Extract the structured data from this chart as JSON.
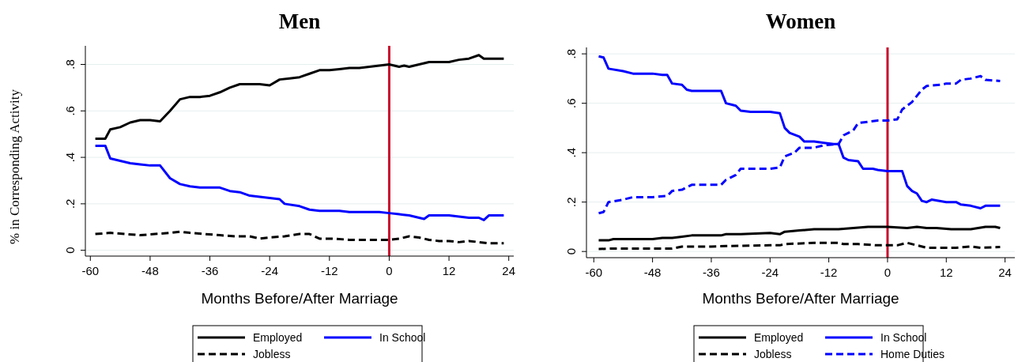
{
  "chart_data": [
    {
      "type": "line",
      "title": "Men",
      "xlabel": "Months Before/After Marriage",
      "ylabel": "% in Corresponding Activity",
      "xlim": [
        -61,
        25
      ],
      "ylim": [
        -0.025,
        0.88
      ],
      "xticks": [
        -60,
        -48,
        -36,
        -24,
        -12,
        0,
        12,
        24
      ],
      "yticks": [
        {
          "value": 0,
          "label": "0"
        },
        {
          "value": 0.2,
          "label": ".2"
        },
        {
          "value": 0.4,
          "label": ".4"
        },
        {
          "value": 0.6,
          "label": ".6"
        },
        {
          "value": 0.8,
          "label": ".8"
        }
      ],
      "grid": "y",
      "legend": "bottom",
      "ref_lines": [
        {
          "axis": "x",
          "value": 0,
          "color": "#c8102e"
        }
      ],
      "series": [
        {
          "name": "Employed",
          "color": "#000000",
          "line_style": "solid",
          "x": [
            -59,
            -57,
            -56,
            -54,
            -52,
            -50,
            -48,
            -46,
            -44,
            -42,
            -40,
            -38,
            -36,
            -34,
            -32,
            -30,
            -28,
            -26,
            -24,
            -22,
            -20,
            -18,
            -16,
            -14,
            -12,
            -10,
            -8,
            -6,
            -4,
            -2,
            0,
            2,
            3,
            4,
            6,
            8,
            10,
            12,
            14,
            16,
            18,
            19,
            23
          ],
          "values": [
            0.48,
            0.48,
            0.52,
            0.53,
            0.55,
            0.56,
            0.56,
            0.555,
            0.6,
            0.65,
            0.66,
            0.66,
            0.665,
            0.68,
            0.7,
            0.715,
            0.715,
            0.715,
            0.71,
            0.735,
            0.74,
            0.745,
            0.76,
            0.775,
            0.775,
            0.78,
            0.785,
            0.785,
            0.79,
            0.795,
            0.8,
            0.79,
            0.795,
            0.79,
            0.8,
            0.81,
            0.81,
            0.81,
            0.82,
            0.825,
            0.84,
            0.825,
            0.825
          ]
        },
        {
          "name": "In School",
          "color": "#0000ff",
          "line_style": "solid",
          "x": [
            -59,
            -57,
            -56,
            -54,
            -52,
            -50,
            -48,
            -46,
            -44,
            -42,
            -40,
            -38,
            -34,
            -32,
            -30,
            -28,
            -26,
            -24,
            -22,
            -21,
            -18,
            -16,
            -14,
            -10,
            -8,
            -4,
            -2,
            0,
            2,
            4,
            6,
            7,
            8,
            12,
            14,
            16,
            18,
            19,
            20,
            23
          ],
          "values": [
            0.45,
            0.45,
            0.395,
            0.385,
            0.375,
            0.37,
            0.365,
            0.365,
            0.31,
            0.285,
            0.275,
            0.27,
            0.27,
            0.255,
            0.25,
            0.235,
            0.23,
            0.225,
            0.22,
            0.2,
            0.19,
            0.175,
            0.17,
            0.17,
            0.165,
            0.165,
            0.165,
            0.16,
            0.155,
            0.15,
            0.14,
            0.135,
            0.15,
            0.15,
            0.145,
            0.14,
            0.14,
            0.13,
            0.15,
            0.15
          ]
        },
        {
          "name": "Jobless",
          "color": "#000000",
          "line_style": "dashed",
          "x": [
            -59,
            -56,
            -53,
            -50,
            -47,
            -44,
            -42,
            -40,
            -37,
            -34,
            -31,
            -28,
            -26,
            -24,
            -21,
            -18,
            -16,
            -14,
            -11,
            -8,
            -5,
            -2,
            0,
            2,
            4,
            6,
            8,
            10,
            12,
            14,
            16,
            18,
            20,
            23
          ],
          "values": [
            0.07,
            0.075,
            0.07,
            0.065,
            0.07,
            0.075,
            0.08,
            0.075,
            0.07,
            0.065,
            0.06,
            0.06,
            0.05,
            0.055,
            0.06,
            0.07,
            0.07,
            0.05,
            0.05,
            0.045,
            0.045,
            0.045,
            0.045,
            0.05,
            0.06,
            0.055,
            0.045,
            0.04,
            0.04,
            0.035,
            0.04,
            0.035,
            0.03,
            0.03
          ]
        }
      ]
    },
    {
      "type": "line",
      "title": "Women",
      "xlabel": "Months Before/After Marriage",
      "xlim": [
        -61.5,
        26
      ],
      "ylim": [
        -0.025,
        0.826
      ],
      "xticks": [
        -60,
        -48,
        -36,
        -24,
        -12,
        0,
        12,
        24
      ],
      "yticks": [
        {
          "value": 0,
          "label": "0"
        },
        {
          "value": 0.2,
          "label": ".2"
        },
        {
          "value": 0.4,
          "label": ".4"
        },
        {
          "value": 0.6,
          "label": ".6"
        },
        {
          "value": 0.8,
          "label": ".8"
        }
      ],
      "grid": "y",
      "legend": "bottom",
      "ref_lines": [
        {
          "axis": "x",
          "value": 0,
          "color": "#c8102e"
        }
      ],
      "series": [
        {
          "name": "Employed",
          "color": "#000000",
          "line_style": "solid",
          "x": [
            -59,
            -57,
            -56,
            -52,
            -48,
            -46,
            -44,
            -42,
            -40,
            -34,
            -33,
            -30,
            -24,
            -22,
            -21,
            -18,
            -15,
            -10,
            -7,
            -4,
            0,
            4,
            6,
            8,
            10,
            13,
            17,
            20,
            22,
            23
          ],
          "values": [
            0.045,
            0.045,
            0.05,
            0.05,
            0.05,
            0.055,
            0.055,
            0.06,
            0.065,
            0.065,
            0.07,
            0.07,
            0.075,
            0.07,
            0.08,
            0.085,
            0.09,
            0.09,
            0.095,
            0.1,
            0.1,
            0.095,
            0.1,
            0.095,
            0.095,
            0.09,
            0.09,
            0.1,
            0.1,
            0.095
          ]
        },
        {
          "name": "In School",
          "color": "#0000ff",
          "line_style": "solid",
          "x": [
            -59,
            -58,
            -57,
            -54,
            -52,
            -48,
            -46,
            -45,
            -44,
            -42,
            -41,
            -40,
            -34,
            -33,
            -31,
            -30,
            -28,
            -24,
            -22,
            -21,
            -20,
            -18,
            -17,
            -15,
            -13,
            -11,
            -10,
            -9,
            -8,
            -6,
            -5,
            -3,
            -2,
            0,
            3,
            4,
            5,
            6,
            7,
            8,
            9,
            12,
            14,
            15,
            17,
            19,
            20,
            23
          ],
          "values": [
            0.79,
            0.785,
            0.74,
            0.73,
            0.72,
            0.72,
            0.715,
            0.715,
            0.68,
            0.675,
            0.655,
            0.65,
            0.65,
            0.6,
            0.59,
            0.57,
            0.565,
            0.565,
            0.56,
            0.5,
            0.48,
            0.465,
            0.445,
            0.445,
            0.44,
            0.435,
            0.435,
            0.38,
            0.37,
            0.365,
            0.335,
            0.335,
            0.33,
            0.325,
            0.325,
            0.265,
            0.245,
            0.235,
            0.205,
            0.2,
            0.21,
            0.2,
            0.2,
            0.19,
            0.185,
            0.175,
            0.185,
            0.185
          ]
        },
        {
          "name": "Jobless",
          "color": "#000000",
          "line_style": "dashed",
          "x": [
            -59,
            -56,
            -48,
            -44,
            -42,
            -36,
            -33,
            -24,
            -22,
            -21,
            -15,
            -10,
            -9,
            -6,
            -2,
            0,
            2,
            4,
            6,
            8,
            14,
            17,
            19,
            23
          ],
          "values": [
            0.01,
            0.012,
            0.012,
            0.012,
            0.02,
            0.02,
            0.022,
            0.025,
            0.025,
            0.03,
            0.035,
            0.035,
            0.03,
            0.03,
            0.025,
            0.025,
            0.025,
            0.035,
            0.025,
            0.015,
            0.015,
            0.02,
            0.015,
            0.018
          ]
        },
        {
          "name": "Home Duties",
          "color": "#0000ff",
          "line_style": "dashed",
          "x": [
            -59,
            -58,
            -57,
            -54,
            -52,
            -48,
            -45,
            -44,
            -42,
            -40,
            -34,
            -33,
            -31,
            -30,
            -24,
            -22,
            -21,
            -19,
            -18,
            -15,
            -13,
            -10,
            -9,
            -8,
            -7,
            -6,
            -4,
            -2,
            0,
            2,
            3,
            5,
            7,
            8,
            11,
            12,
            14,
            15,
            17,
            19,
            20,
            23
          ],
          "values": [
            0.155,
            0.16,
            0.2,
            0.21,
            0.22,
            0.22,
            0.225,
            0.245,
            0.25,
            0.27,
            0.27,
            0.29,
            0.31,
            0.335,
            0.335,
            0.34,
            0.385,
            0.4,
            0.42,
            0.42,
            0.43,
            0.435,
            0.47,
            0.48,
            0.49,
            0.52,
            0.525,
            0.53,
            0.53,
            0.535,
            0.575,
            0.605,
            0.655,
            0.67,
            0.675,
            0.68,
            0.68,
            0.695,
            0.7,
            0.71,
            0.695,
            0.69
          ]
        }
      ]
    }
  ]
}
